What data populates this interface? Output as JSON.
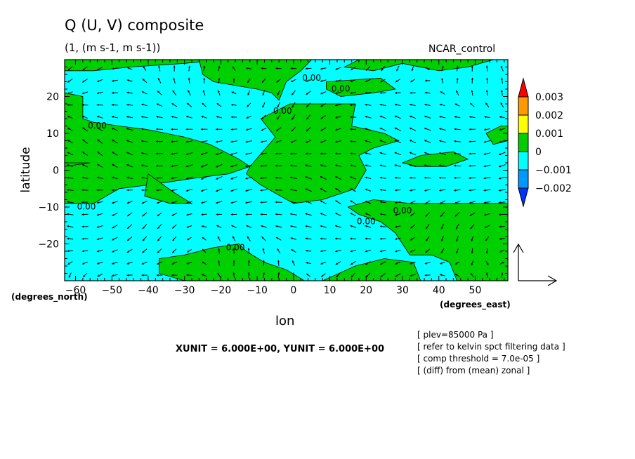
{
  "chart_data": {
    "type": "contour-vector",
    "title": "Q (U, V) composite",
    "subtitle": "(1, (m s-1, m s-1))",
    "run_name": "NCAR_control",
    "xlabel": "lon",
    "ylabel": "latitude",
    "x_unit_label": "(degrees_east)",
    "y_unit_label": "(degrees_north)",
    "xlim": [
      -63,
      59
    ],
    "ylim": [
      -30,
      30
    ],
    "x_ticks": [
      -60,
      -50,
      -40,
      -30,
      -20,
      -10,
      0,
      10,
      20,
      30,
      40,
      50
    ],
    "y_ticks": [
      -20,
      -10,
      0,
      10,
      20
    ],
    "vector_unit_text": "XUNIT = 6.000E+00, YUNIT = 6.000E+00",
    "colorbar": {
      "levels": [
        "0.003",
        "0.002",
        "0.001",
        "0",
        "-0.001",
        "-0.002"
      ],
      "colors": [
        "#ff0000",
        "#ff9900",
        "#ffff00",
        "#00cc00",
        "#00ffff",
        "#0099ff",
        "#0033ff"
      ]
    },
    "fill_colors": {
      "positive": "#00d000",
      "negative": "#00ffff"
    },
    "contour_label": "0.00",
    "contour_label_positions": [
      [
        -54,
        12
      ],
      [
        -57,
        -10
      ],
      [
        5,
        25
      ],
      [
        -3,
        16
      ],
      [
        13,
        22
      ],
      [
        30,
        -11
      ],
      [
        20,
        -14
      ],
      [
        -16,
        -21
      ]
    ],
    "positive_regions": [
      [
        [
          -63,
          30
        ],
        [
          -63,
          27
        ],
        [
          -55,
          27
        ],
        [
          -45,
          28
        ],
        [
          -30,
          29
        ],
        [
          -20,
          30
        ]
      ],
      [
        [
          -26,
          30
        ],
        [
          -25,
          26
        ],
        [
          -22,
          24
        ],
        [
          -10,
          22
        ],
        [
          -6,
          21
        ],
        [
          -4,
          19
        ],
        [
          -2,
          24
        ],
        [
          2,
          27
        ],
        [
          5,
          30
        ]
      ],
      [
        [
          -63,
          21
        ],
        [
          -58,
          20
        ],
        [
          -58,
          14
        ],
        [
          -55,
          13
        ],
        [
          -48,
          12
        ],
        [
          -40,
          11
        ],
        [
          -30,
          9
        ],
        [
          -23,
          7
        ],
        [
          -15,
          3
        ],
        [
          -12,
          1
        ],
        [
          -18,
          -1
        ],
        [
          -26,
          -2
        ],
        [
          -33,
          -3
        ],
        [
          -40,
          -4
        ],
        [
          -48,
          -5
        ],
        [
          -55,
          -9
        ],
        [
          -63,
          -9
        ]
      ],
      [
        [
          -63,
          1
        ],
        [
          -56,
          2
        ],
        [
          -63,
          2
        ]
      ],
      [
        [
          -40,
          -1
        ],
        [
          -33,
          -6
        ],
        [
          -28,
          -9
        ],
        [
          -34,
          -9
        ],
        [
          -41,
          -7
        ]
      ],
      [
        [
          -12,
          1
        ],
        [
          -5,
          9
        ],
        [
          -9,
          14
        ],
        [
          -1,
          18
        ],
        [
          17,
          18
        ],
        [
          16,
          12
        ],
        [
          25,
          10
        ],
        [
          29,
          8
        ],
        [
          22,
          6
        ],
        [
          18,
          4
        ],
        [
          20,
          0
        ],
        [
          17,
          -5
        ],
        [
          8,
          -8
        ],
        [
          0,
          -9
        ],
        [
          -9,
          -4
        ],
        [
          -13,
          -1
        ]
      ],
      [
        [
          9,
          24
        ],
        [
          24,
          25
        ],
        [
          28,
          22
        ],
        [
          22,
          21
        ],
        [
          13,
          20
        ],
        [
          9,
          22
        ]
      ],
      [
        [
          18,
          30
        ],
        [
          14,
          28
        ],
        [
          22,
          27
        ],
        [
          30,
          29
        ],
        [
          40,
          27
        ],
        [
          48,
          28
        ],
        [
          55,
          30
        ]
      ],
      [
        [
          30,
          2
        ],
        [
          35,
          4
        ],
        [
          44,
          5
        ],
        [
          48,
          3
        ],
        [
          42,
          1
        ],
        [
          34,
          1
        ]
      ],
      [
        [
          53,
          10
        ],
        [
          57,
          12
        ],
        [
          59,
          12
        ],
        [
          59,
          8
        ],
        [
          55,
          7
        ]
      ],
      [
        [
          22,
          -8
        ],
        [
          32,
          -9
        ],
        [
          44,
          -9
        ],
        [
          59,
          -9
        ],
        [
          59,
          -30
        ],
        [
          45,
          -30
        ],
        [
          43,
          -25
        ],
        [
          38,
          -23
        ],
        [
          32,
          -23
        ],
        [
          28,
          -17
        ],
        [
          24,
          -14
        ],
        [
          18,
          -12
        ],
        [
          15,
          -10
        ]
      ],
      [
        [
          -37,
          -24
        ],
        [
          -30,
          -23
        ],
        [
          -22,
          -21
        ],
        [
          -15,
          -20
        ],
        [
          -13,
          -22
        ],
        [
          -8,
          -25
        ],
        [
          -2,
          -27
        ],
        [
          3,
          -30
        ],
        [
          -30,
          -30
        ],
        [
          -37,
          -28
        ]
      ],
      [
        [
          8,
          -30
        ],
        [
          17,
          -26
        ],
        [
          25,
          -24
        ],
        [
          33,
          -25
        ],
        [
          35,
          -30
        ]
      ]
    ],
    "vectors_grid": {
      "lon_step": 4.1,
      "lat_step": 3.3
    }
  }
}
